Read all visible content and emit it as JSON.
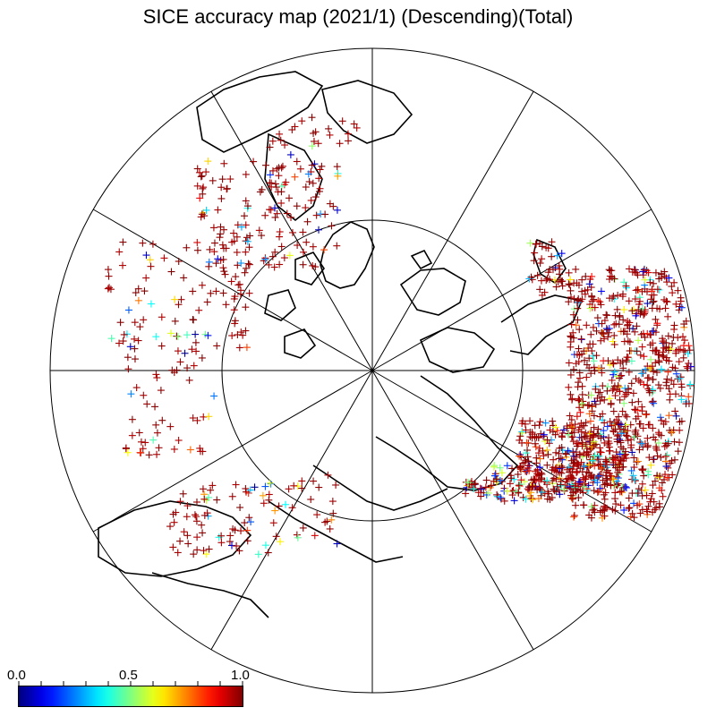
{
  "title": "SICE accuracy map (2021/1) (Descending)(Total)",
  "map": {
    "projection": "north-polar-stereographic",
    "meridian_spacing_deg": 30,
    "inner_circle_label": "",
    "marker": "plus"
  },
  "colorbar": {
    "min_label": "0.0",
    "mid_label": "0.5",
    "max_label": "1.0",
    "colors": [
      "#00007f",
      "#0000ff",
      "#007fff",
      "#00ffff",
      "#7fff7f",
      "#ffff00",
      "#ff7f00",
      "#ff0000",
      "#7f0000"
    ]
  },
  "chart_data": {
    "type": "scatter",
    "title": "SICE accuracy map (2021/1) (Descending)(Total)",
    "value_range": [
      0.0,
      1.0
    ],
    "value_meaning": "accuracy",
    "dominant_value": 1.0
  }
}
